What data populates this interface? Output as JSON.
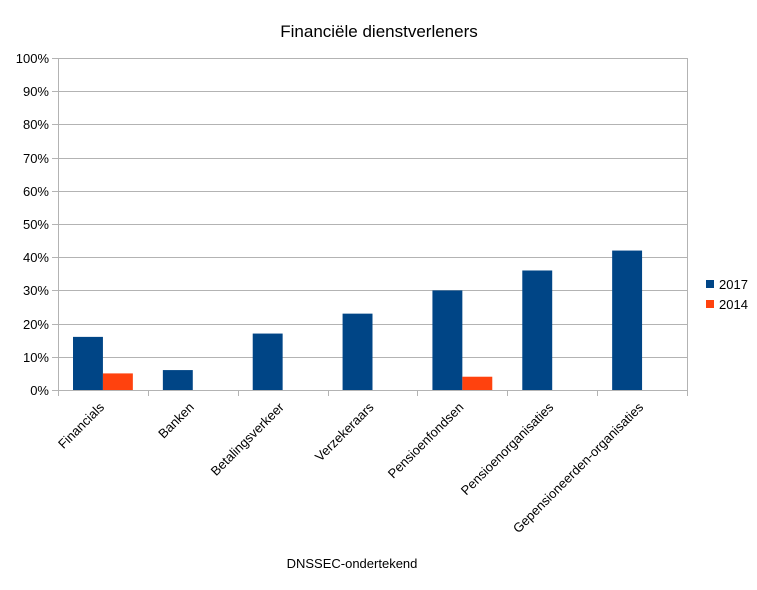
{
  "chart_data": {
    "type": "bar",
    "title": "Financiële dienstverleners",
    "xlabel": "DNSSEC-ondertekend",
    "ylabel": "",
    "ylim": [
      0,
      100
    ],
    "y_ticks": [
      "0%",
      "10%",
      "20%",
      "30%",
      "40%",
      "50%",
      "60%",
      "70%",
      "80%",
      "90%",
      "100%"
    ],
    "categories": [
      "Financials",
      "Banken",
      "Betalingsverkeer",
      "Verzekeraars",
      "Pensioenfondsen",
      "Pensioenorganisaties",
      "Gepensioneerden-organisaties"
    ],
    "series": [
      {
        "name": "2017",
        "color": "#004586",
        "values": [
          16,
          6,
          17,
          23,
          30,
          36,
          42
        ]
      },
      {
        "name": "2014",
        "color": "#ff420e",
        "values": [
          5,
          null,
          null,
          null,
          4,
          null,
          null
        ]
      }
    ],
    "grid": true,
    "legend_position": "right"
  }
}
